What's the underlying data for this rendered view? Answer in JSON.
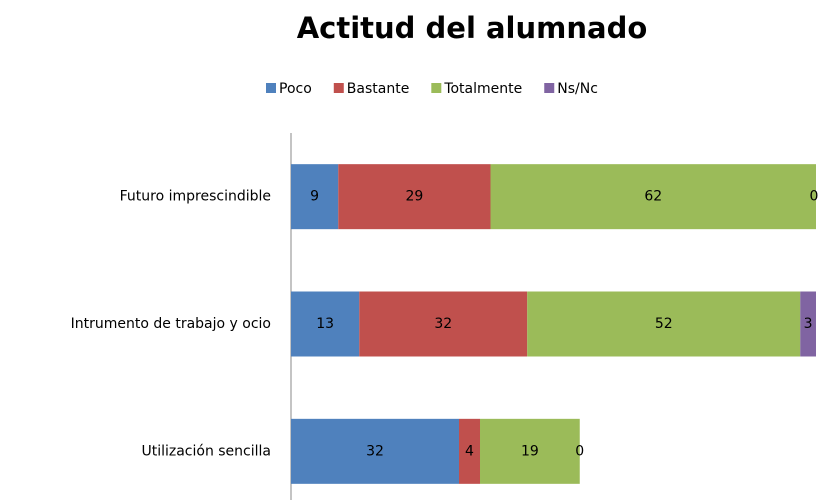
{
  "chart_data": {
    "type": "stacked-bar-horizontal",
    "title": "Actitud del alumnado",
    "categories": [
      "Futuro imprescindible",
      "Intrumento de trabajo y ocio",
      "Utilización sencilla"
    ],
    "series": [
      {
        "name": "Poco",
        "color": "#4f81bd",
        "values": [
          9,
          13,
          32
        ]
      },
      {
        "name": "Bastante",
        "color": "#c0504d",
        "values": [
          29,
          32,
          4
        ]
      },
      {
        "name": "Totalmente",
        "color": "#9bbb59",
        "values": [
          62,
          52,
          19
        ]
      },
      {
        "name": "Ns/Nc",
        "color": "#8064a2",
        "values": [
          0,
          3,
          0
        ]
      }
    ],
    "xlim": [
      0,
      100
    ],
    "legend": "top"
  }
}
